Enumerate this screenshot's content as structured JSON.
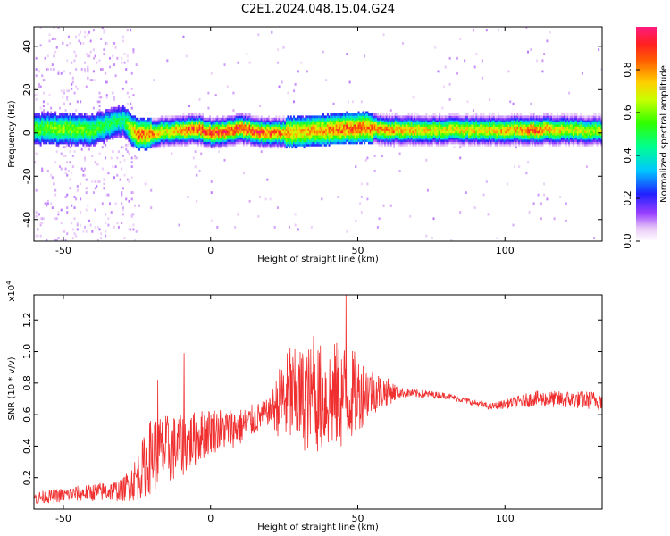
{
  "title": "C2E1.2024.048.15.04.G24",
  "chart_data": [
    {
      "type": "heatmap",
      "xlabel": "Height of straight line (km)",
      "ylabel": "Frequency (Hz)",
      "xlim": [
        -60,
        133
      ],
      "ylim": [
        -50,
        49
      ],
      "xticks": [
        -50,
        0,
        50,
        100
      ],
      "yticks": [
        -40,
        -20,
        0,
        20,
        40
      ],
      "colorbar": {
        "label": "Normalized spectral amplitude",
        "range": [
          0,
          1
        ],
        "ticks": [
          0.0,
          0.2,
          0.4,
          0.6,
          0.8
        ],
        "tick_labels": [
          "0.0",
          "0.2",
          "0.4",
          "0.6",
          "0.8"
        ],
        "colormap": "rainbow (white, purple, blue, cyan, green, yellow, orange, red, pink)"
      },
      "ridge": [
        {
          "x": -60,
          "f": 1.5,
          "amp": 0.55
        },
        {
          "x": -50,
          "f": 1.5,
          "amp": 0.6
        },
        {
          "x": -40,
          "f": 1.0,
          "amp": 0.55
        },
        {
          "x": -30,
          "f": 5.5,
          "amp": 0.45
        },
        {
          "x": -25,
          "f": -1.5,
          "amp": 0.85
        },
        {
          "x": -15,
          "f": 0.5,
          "amp": 0.7
        },
        {
          "x": -5,
          "f": 1.5,
          "amp": 0.9
        },
        {
          "x": 0,
          "f": -0.5,
          "amp": 0.9
        },
        {
          "x": 10,
          "f": 1.5,
          "amp": 0.9
        },
        {
          "x": 20,
          "f": -0.5,
          "amp": 0.85
        },
        {
          "x": 30,
          "f": 0.0,
          "amp": 0.75
        },
        {
          "x": 40,
          "f": 1.0,
          "amp": 0.8
        },
        {
          "x": 50,
          "f": 2.0,
          "amp": 0.85
        },
        {
          "x": 60,
          "f": 1.0,
          "amp": 0.8
        },
        {
          "x": 80,
          "f": 1.0,
          "amp": 0.7
        },
        {
          "x": 100,
          "f": 1.0,
          "amp": 0.75
        },
        {
          "x": 110,
          "f": 1.0,
          "amp": 0.85
        },
        {
          "x": 120,
          "f": 1.0,
          "amp": 0.7
        },
        {
          "x": 133,
          "f": 0.5,
          "amp": 0.65
        }
      ]
    },
    {
      "type": "line",
      "xlabel": "Height of straight line (km)",
      "ylabel": "SNR (10 * v/v)",
      "yscale_label": "(x10⁴)",
      "yscale_base": "x10",
      "yscale_exp": "4",
      "xlim": [
        -60,
        133
      ],
      "ylim": [
        0.0,
        1.36
      ],
      "xticks": [
        -50,
        0,
        50,
        100
      ],
      "yticks": [
        0.2,
        0.4,
        0.6,
        0.8,
        1.0,
        1.2
      ],
      "ytick_labels": [
        "0.2",
        "0.4",
        "0.6",
        "0.8",
        "1.0",
        "1.2"
      ],
      "series": [
        {
          "color": "#f03030",
          "envelope": [
            {
              "x": -60,
              "mean": 0.07,
              "amp": 0.04
            },
            {
              "x": -45,
              "mean": 0.1,
              "amp": 0.05
            },
            {
              "x": -30,
              "mean": 0.12,
              "amp": 0.07
            },
            {
              "x": -25,
              "mean": 0.2,
              "amp": 0.15
            },
            {
              "x": -20,
              "mean": 0.35,
              "amp": 0.25
            },
            {
              "x": -10,
              "mean": 0.4,
              "amp": 0.2
            },
            {
              "x": 0,
              "mean": 0.5,
              "amp": 0.15
            },
            {
              "x": 10,
              "mean": 0.52,
              "amp": 0.12
            },
            {
              "x": 20,
              "mean": 0.62,
              "amp": 0.08
            },
            {
              "x": 25,
              "mean": 0.7,
              "amp": 0.3
            },
            {
              "x": 35,
              "mean": 0.7,
              "amp": 0.35
            },
            {
              "x": 45,
              "mean": 0.72,
              "amp": 0.35
            },
            {
              "x": 55,
              "mean": 0.75,
              "amp": 0.15
            },
            {
              "x": 65,
              "mean": 0.74,
              "amp": 0.03
            },
            {
              "x": 80,
              "mean": 0.72,
              "amp": 0.02
            },
            {
              "x": 95,
              "mean": 0.65,
              "amp": 0.02
            },
            {
              "x": 110,
              "mean": 0.7,
              "amp": 0.05
            },
            {
              "x": 133,
              "mean": 0.69,
              "amp": 0.06
            }
          ],
          "peaks": [
            {
              "x": -18,
              "y": 0.82
            },
            {
              "x": -9,
              "y": 0.99
            },
            {
              "x": 46,
              "y": 1.36
            },
            {
              "x": 27,
              "y": 1.02
            },
            {
              "x": 35,
              "y": 1.1
            }
          ]
        }
      ]
    }
  ]
}
